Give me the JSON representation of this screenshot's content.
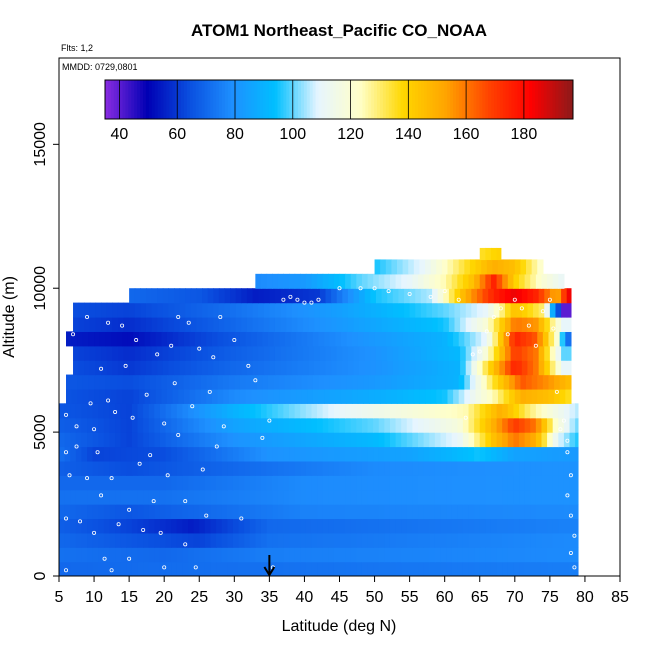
{
  "chart_data": {
    "type": "heatmap",
    "title": "ATOM1 Northeast_Pacific CO_NOAA",
    "subtitle_flights": "Flts: 1,2",
    "subtitle_dates": "MMDD: 0729,0801",
    "xlabel": "Latitude (deg N)",
    "ylabel": "Altitude (m)",
    "xlim": [
      5,
      85
    ],
    "ylim": [
      0,
      18000
    ],
    "x_ticks": [
      5,
      10,
      15,
      20,
      25,
      30,
      35,
      40,
      45,
      50,
      55,
      60,
      65,
      70,
      75,
      80,
      85
    ],
    "y_ticks": [
      0,
      5000,
      10000,
      15000
    ],
    "colorbar": {
      "range": [
        35,
        197
      ],
      "ticks": [
        40,
        60,
        80,
        100,
        120,
        140,
        160,
        180
      ],
      "colors": [
        "#8a2be2",
        "#0000b4",
        "#0a50e0",
        "#1e90ff",
        "#00bfff",
        "#e6f5ff",
        "#ffffc8",
        "#ffd700",
        "#ffa500",
        "#ff4500",
        "#ff0000",
        "#8b1a1a"
      ]
    },
    "marker_arrow_lat": 35,
    "bands": [
      {
        "y0": 0,
        "y1": 500,
        "x0": 5,
        "x1": 79,
        "values": [
          [
            5,
            70
          ],
          [
            79,
            75
          ]
        ]
      },
      {
        "y0": 500,
        "y1": 1000,
        "x0": 5,
        "x1": 79,
        "values": [
          [
            5,
            72
          ],
          [
            20,
            70
          ],
          [
            35,
            75
          ],
          [
            79,
            78
          ]
        ]
      },
      {
        "y0": 1000,
        "y1": 1500,
        "x0": 5,
        "x1": 79,
        "values": [
          [
            5,
            70
          ],
          [
            15,
            66
          ],
          [
            25,
            62
          ],
          [
            35,
            72
          ],
          [
            79,
            78
          ]
        ]
      },
      {
        "y0": 1500,
        "y1": 2000,
        "x0": 5,
        "x1": 79,
        "values": [
          [
            5,
            68
          ],
          [
            15,
            62
          ],
          [
            24,
            55
          ],
          [
            35,
            70
          ],
          [
            79,
            76
          ]
        ]
      },
      {
        "y0": 2000,
        "y1": 2500,
        "x0": 5,
        "x1": 79,
        "values": [
          [
            5,
            70
          ],
          [
            15,
            66
          ],
          [
            25,
            70
          ],
          [
            40,
            76
          ],
          [
            79,
            78
          ]
        ]
      },
      {
        "y0": 2500,
        "y1": 3000,
        "x0": 5,
        "x1": 79,
        "values": [
          [
            5,
            72
          ],
          [
            20,
            72
          ],
          [
            40,
            78
          ],
          [
            79,
            80
          ]
        ]
      },
      {
        "y0": 3000,
        "y1": 3500,
        "x0": 5,
        "x1": 79,
        "values": [
          [
            5,
            70
          ],
          [
            20,
            70
          ],
          [
            40,
            78
          ],
          [
            79,
            80
          ]
        ]
      },
      {
        "y0": 3500,
        "y1": 4000,
        "x0": 5,
        "x1": 79,
        "values": [
          [
            5,
            68
          ],
          [
            15,
            64
          ],
          [
            30,
            70
          ],
          [
            50,
            78
          ],
          [
            79,
            80
          ]
        ]
      },
      {
        "y0": 4000,
        "y1": 4500,
        "x0": 5,
        "x1": 79,
        "values": [
          [
            5,
            72
          ],
          [
            10,
            62
          ],
          [
            20,
            64
          ],
          [
            35,
            80
          ],
          [
            55,
            85
          ],
          [
            65,
            95
          ],
          [
            70,
            85
          ],
          [
            79,
            82
          ]
        ]
      },
      {
        "y0": 4500,
        "y1": 5000,
        "x0": 5,
        "x1": 79,
        "values": [
          [
            5,
            70
          ],
          [
            15,
            62
          ],
          [
            30,
            80
          ],
          [
            50,
            92
          ],
          [
            62,
            110
          ],
          [
            67,
            145
          ],
          [
            70,
            160
          ],
          [
            73,
            150
          ],
          [
            76,
            110
          ],
          [
            79,
            95
          ]
        ]
      },
      {
        "y0": 5000,
        "y1": 5500,
        "x0": 5,
        "x1": 79,
        "values": [
          [
            5,
            68
          ],
          [
            15,
            62
          ],
          [
            30,
            85
          ],
          [
            50,
            100
          ],
          [
            62,
            118
          ],
          [
            67,
            150
          ],
          [
            70,
            170
          ],
          [
            73,
            160
          ],
          [
            76,
            120
          ],
          [
            79,
            100
          ]
        ]
      },
      {
        "y0": 5500,
        "y1": 6000,
        "x0": 5,
        "x1": 79,
        "values": [
          [
            5,
            66
          ],
          [
            15,
            62
          ],
          [
            30,
            90
          ],
          [
            45,
            110
          ],
          [
            55,
            118
          ],
          [
            63,
            125
          ],
          [
            68,
            150
          ],
          [
            72,
            130
          ],
          [
            76,
            115
          ],
          [
            79,
            105
          ]
        ]
      },
      {
        "y0": 6000,
        "y1": 6500,
        "x0": 6,
        "x1": 78,
        "values": [
          [
            6,
            65
          ],
          [
            15,
            62
          ],
          [
            30,
            78
          ],
          [
            50,
            88
          ],
          [
            60,
            95
          ],
          [
            67,
            125
          ],
          [
            71,
            150
          ],
          [
            75,
            145
          ],
          [
            78,
            135
          ]
        ]
      },
      {
        "y0": 6500,
        "y1": 7000,
        "x0": 6,
        "x1": 78,
        "values": [
          [
            6,
            66
          ],
          [
            15,
            64
          ],
          [
            30,
            74
          ],
          [
            50,
            82
          ],
          [
            62,
            90
          ],
          [
            67,
            135
          ],
          [
            71,
            165
          ],
          [
            75,
            155
          ],
          [
            78,
            145
          ]
        ]
      },
      {
        "y0": 7000,
        "y1": 7500,
        "x0": 7,
        "x1": 78,
        "values": [
          [
            7,
            64
          ],
          [
            15,
            60
          ],
          [
            30,
            70
          ],
          [
            50,
            80
          ],
          [
            62,
            90
          ],
          [
            67,
            145
          ],
          [
            70,
            175
          ],
          [
            73,
            160
          ],
          [
            77,
            110
          ]
        ]
      },
      {
        "y0": 7500,
        "y1": 8000,
        "x0": 7,
        "x1": 78,
        "values": [
          [
            7,
            62
          ],
          [
            15,
            58
          ],
          [
            30,
            68
          ],
          [
            50,
            80
          ],
          [
            62,
            92
          ],
          [
            66,
            120
          ],
          [
            70,
            170
          ],
          [
            73,
            160
          ],
          [
            77,
            100
          ]
        ]
      },
      {
        "y0": 8000,
        "y1": 8500,
        "x0": 6,
        "x1": 78,
        "values": [
          [
            6,
            55
          ],
          [
            15,
            52
          ],
          [
            25,
            62
          ],
          [
            45,
            78
          ],
          [
            60,
            90
          ],
          [
            66,
            110
          ],
          [
            70,
            175
          ],
          [
            73,
            165
          ],
          [
            76,
            120
          ],
          [
            78,
            60
          ]
        ]
      },
      {
        "y0": 8500,
        "y1": 9000,
        "x0": 7,
        "x1": 78,
        "values": [
          [
            7,
            62
          ],
          [
            15,
            58
          ],
          [
            30,
            70
          ],
          [
            45,
            82
          ],
          [
            60,
            95
          ],
          [
            66,
            120
          ],
          [
            70,
            160
          ],
          [
            73,
            155
          ],
          [
            77,
            110
          ]
        ]
      },
      {
        "y0": 9000,
        "y1": 9500,
        "x0": 7,
        "x1": 78,
        "values": [
          [
            7,
            64
          ],
          [
            15,
            62
          ],
          [
            30,
            72
          ],
          [
            45,
            84
          ],
          [
            60,
            100
          ],
          [
            66,
            110
          ],
          [
            70,
            145
          ],
          [
            74,
            130
          ],
          [
            77,
            40
          ]
        ]
      },
      {
        "y0": 9500,
        "y1": 10000,
        "x0": 15,
        "x1": 78,
        "values": [
          [
            15,
            70
          ],
          [
            25,
            66
          ],
          [
            33,
            55
          ],
          [
            42,
            60
          ],
          [
            50,
            95
          ],
          [
            58,
            105
          ],
          [
            63,
            150
          ],
          [
            67,
            175
          ],
          [
            70,
            185
          ],
          [
            73,
            175
          ],
          [
            76,
            150
          ],
          [
            78,
            190
          ]
        ]
      },
      {
        "y0": 10000,
        "y1": 10500,
        "x0": 33,
        "x1": 77,
        "values": [
          [
            33,
            78
          ],
          [
            40,
            82
          ],
          [
            48,
            100
          ],
          [
            55,
            110
          ],
          [
            60,
            125
          ],
          [
            64,
            145
          ],
          [
            67,
            175
          ],
          [
            70,
            140
          ],
          [
            74,
            120
          ],
          [
            77,
            110
          ]
        ]
      },
      {
        "y0": 10500,
        "y1": 11000,
        "x0": 50,
        "x1": 74,
        "values": [
          [
            50,
            95
          ],
          [
            57,
            110
          ],
          [
            63,
            135
          ],
          [
            67,
            150
          ],
          [
            70,
            145
          ],
          [
            74,
            120
          ]
        ]
      },
      {
        "y0": 11000,
        "y1": 11400,
        "x0": 65,
        "x1": 68,
        "values": [
          [
            65,
            135
          ],
          [
            68,
            140
          ]
        ]
      }
    ],
    "points": [
      [
        5.5,
        7000
      ],
      [
        6,
        5600
      ],
      [
        6,
        4300
      ],
      [
        6.5,
        3500
      ],
      [
        6,
        2000
      ],
      [
        6,
        200
      ],
      [
        7,
        8400
      ],
      [
        7.5,
        5200
      ],
      [
        7.5,
        4500
      ],
      [
        8,
        1900
      ],
      [
        9,
        9000
      ],
      [
        9.5,
        6000
      ],
      [
        9,
        3400
      ],
      [
        10,
        5100
      ],
      [
        10,
        1500
      ],
      [
        10.5,
        4300
      ],
      [
        11,
        7200
      ],
      [
        11,
        2800
      ],
      [
        11.5,
        600
      ],
      [
        12,
        8800
      ],
      [
        12,
        6100
      ],
      [
        12.5,
        3400
      ],
      [
        12.5,
        200
      ],
      [
        13,
        5700
      ],
      [
        13.5,
        1800
      ],
      [
        14,
        8700
      ],
      [
        14.5,
        7300
      ],
      [
        15,
        2300
      ],
      [
        15,
        600
      ],
      [
        15.5,
        5500
      ],
      [
        16,
        8200
      ],
      [
        16.5,
        3900
      ],
      [
        17,
        1600
      ],
      [
        17.5,
        6300
      ],
      [
        18,
        4200
      ],
      [
        18.5,
        2600
      ],
      [
        19,
        7700
      ],
      [
        19.5,
        1500
      ],
      [
        20,
        5300
      ],
      [
        20,
        300
      ],
      [
        20.5,
        3500
      ],
      [
        21,
        8000
      ],
      [
        21.5,
        6700
      ],
      [
        22,
        9000
      ],
      [
        22,
        4900
      ],
      [
        23,
        2600
      ],
      [
        23,
        1100
      ],
      [
        23.5,
        8800
      ],
      [
        24,
        5900
      ],
      [
        24.5,
        300
      ],
      [
        25,
        7900
      ],
      [
        25.5,
        3700
      ],
      [
        26,
        2100
      ],
      [
        26.5,
        6400
      ],
      [
        27,
        7600
      ],
      [
        27.5,
        4500
      ],
      [
        28,
        9000
      ],
      [
        28.5,
        5200
      ],
      [
        30,
        8200
      ],
      [
        31,
        2000
      ],
      [
        32,
        7300
      ],
      [
        33,
        6800
      ],
      [
        34,
        4800
      ],
      [
        35,
        5400
      ],
      [
        35.5,
        300
      ],
      [
        37,
        9600
      ],
      [
        38,
        9700
      ],
      [
        39,
        9600
      ],
      [
        40,
        9500
      ],
      [
        41,
        9500
      ],
      [
        42,
        9600
      ],
      [
        45,
        10000
      ],
      [
        48,
        10000
      ],
      [
        50,
        10000
      ],
      [
        52,
        9900
      ],
      [
        55,
        9800
      ],
      [
        58,
        9700
      ],
      [
        60,
        9900
      ],
      [
        62,
        9600
      ],
      [
        63,
        5500
      ],
      [
        64,
        7700
      ],
      [
        65,
        7800
      ],
      [
        66,
        8500
      ],
      [
        67,
        9000
      ],
      [
        68,
        9300
      ],
      [
        69,
        8400
      ],
      [
        70,
        9600
      ],
      [
        71,
        9300
      ],
      [
        72,
        8700
      ],
      [
        73,
        8000
      ],
      [
        74,
        9200
      ],
      [
        75,
        9600
      ],
      [
        75.5,
        8600
      ],
      [
        76,
        6400
      ],
      [
        77,
        5400
      ],
      [
        77.5,
        4700
      ],
      [
        78,
        3500
      ],
      [
        77.5,
        2800
      ],
      [
        78,
        2100
      ],
      [
        78.5,
        1400
      ],
      [
        78,
        800
      ],
      [
        78.5,
        300
      ],
      [
        77.5,
        4300
      ],
      [
        76.5,
        5100
      ]
    ]
  }
}
